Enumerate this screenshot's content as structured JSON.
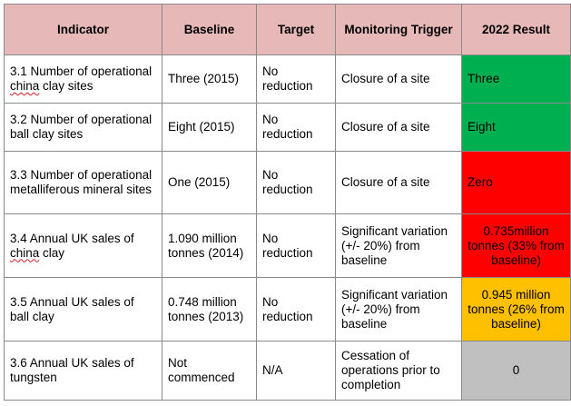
{
  "headers": [
    "Indicator",
    "Baseline",
    "Target",
    "Monitoring Trigger",
    "2022 Result"
  ],
  "rows": [
    {
      "indicator_pre": "3.1 Number of operational ",
      "indicator_flag": "china",
      "indicator_post": " clay sites",
      "baseline": "Three (2015)",
      "target": "No reduction",
      "trigger": "Closure of a site",
      "result": "Three",
      "result_color": "#00b050"
    },
    {
      "indicator_pre": "3.2 Number of operational ball clay sites",
      "indicator_flag": "",
      "indicator_post": "",
      "baseline": "Eight (2015)",
      "target": "No reduction",
      "trigger": "Closure of a site",
      "result": "Eight",
      "result_color": "#00b050"
    },
    {
      "indicator_pre": "3.3 Number of operational metalliferous mineral sites",
      "indicator_flag": "",
      "indicator_post": "",
      "baseline": "One (2015)",
      "target": "No reduction",
      "trigger": "Closure of a site",
      "result": "Zero",
      "result_color": "#ff0000"
    },
    {
      "indicator_pre": "3.4 Annual UK sales of ",
      "indicator_flag": "china",
      "indicator_post": " clay",
      "baseline": "1.090 million tonnes (2014)",
      "target": "No reduction",
      "trigger": "Significant variation (+/- 20%) from baseline",
      "result": "0.735million tonnes (33% from baseline)",
      "result_color": "#ff0000"
    },
    {
      "indicator_pre": "3.5 Annual UK sales of ball clay",
      "indicator_flag": "",
      "indicator_post": "",
      "baseline": "0.748 million tonnes (2013)",
      "target": "No reduction",
      "trigger": "Significant variation (+/- 20%) from baseline",
      "result": "0.945 million tonnes (26% from baseline)",
      "result_color": "#ffc000"
    },
    {
      "indicator_pre": "3.6 Annual UK sales of tungsten",
      "indicator_flag": "",
      "indicator_post": "",
      "baseline": "Not commenced",
      "target": "N/A",
      "trigger": "Cessation of operations prior to completion",
      "result": "0",
      "result_color": "#c0c0c0"
    }
  ]
}
